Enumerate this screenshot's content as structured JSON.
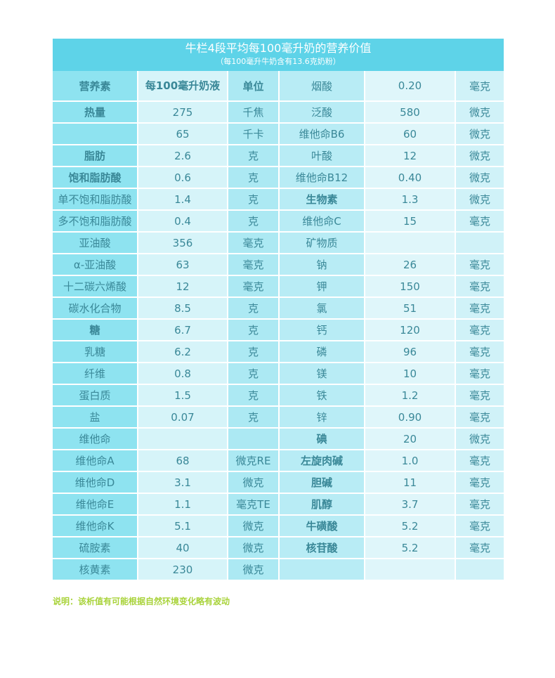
{
  "header": {
    "title": "牛栏4段平均每100毫升奶的营养价值",
    "subtitle": "（每100毫升牛奶含有13.6克奶粉）"
  },
  "table": {
    "head": {
      "name": "营养素",
      "amount": "每100毫升奶液",
      "unit": "单位",
      "name2": "烟酸",
      "amount2": "0.20",
      "unit2": "毫克"
    },
    "rows": [
      {
        "name": "热量",
        "val": "275",
        "unit": "千焦",
        "name2": "泛酸",
        "val2": "580",
        "unit2": "微克",
        "b1": true,
        "b2": false
      },
      {
        "name": "",
        "val": "65",
        "unit": "千卡",
        "name2": "维他命B6",
        "val2": "60",
        "unit2": "微克",
        "b1": false,
        "b2": false
      },
      {
        "name": "脂肪",
        "val": "2.6",
        "unit": "克",
        "name2": "叶酸",
        "val2": "12",
        "unit2": "微克",
        "b1": true,
        "b2": false
      },
      {
        "name": "饱和脂肪酸",
        "val": "0.6",
        "unit": "克",
        "name2": "维他命B12",
        "val2": "0.40",
        "unit2": "微克",
        "b1": true,
        "b2": false
      },
      {
        "name": "单不饱和脂肪酸",
        "val": "1.4",
        "unit": "克",
        "name2": "生物素",
        "val2": "1.3",
        "unit2": "微克",
        "b1": false,
        "b2": true
      },
      {
        "name": "多不饱和脂肪酸",
        "val": "0.4",
        "unit": "克",
        "name2": "维他命C",
        "val2": "15",
        "unit2": "毫克",
        "b1": false,
        "b2": false
      },
      {
        "name": "亚油酸",
        "val": "356",
        "unit": "毫克",
        "name2": "矿物质",
        "val2": "",
        "unit2": "",
        "b1": false,
        "b2": false
      },
      {
        "name": "α-亚油酸",
        "val": "63",
        "unit": "毫克",
        "name2": "钠",
        "val2": "26",
        "unit2": "毫克",
        "b1": false,
        "b2": false
      },
      {
        "name": "十二碳六烯酸",
        "val": "12",
        "unit": "毫克",
        "name2": "钾",
        "val2": "150",
        "unit2": "毫克",
        "b1": false,
        "b2": false
      },
      {
        "name": "碳水化合物",
        "val": "8.5",
        "unit": "克",
        "name2": "氯",
        "val2": "51",
        "unit2": "毫克",
        "b1": false,
        "b2": false
      },
      {
        "name": "糖",
        "val": "6.7",
        "unit": "克",
        "name2": "钙",
        "val2": "120",
        "unit2": "毫克",
        "b1": true,
        "b2": false
      },
      {
        "name": "乳糖",
        "val": "6.2",
        "unit": "克",
        "name2": "磷",
        "val2": "96",
        "unit2": "毫克",
        "b1": false,
        "b2": false
      },
      {
        "name": "纤维",
        "val": "0.8",
        "unit": "克",
        "name2": "镁",
        "val2": "10",
        "unit2": "毫克",
        "b1": false,
        "b2": false
      },
      {
        "name": "蛋白质",
        "val": "1.5",
        "unit": "克",
        "name2": "铁",
        "val2": "1.2",
        "unit2": "毫克",
        "b1": false,
        "b2": false
      },
      {
        "name": "盐",
        "val": "0.07",
        "unit": "克",
        "name2": "锌",
        "val2": "0.90",
        "unit2": "毫克",
        "b1": false,
        "b2": false
      },
      {
        "name": "维他命",
        "val": "",
        "unit": "",
        "name2": "碘",
        "val2": "20",
        "unit2": "微克",
        "b1": false,
        "b2": true
      },
      {
        "name": "维他命A",
        "val": "68",
        "unit": "微克RE",
        "name2": "左旋肉碱",
        "val2": "1.0",
        "unit2": "毫克",
        "b1": false,
        "b2": true
      },
      {
        "name": "维他命D",
        "val": "3.1",
        "unit": "微克",
        "name2": "胆碱",
        "val2": "11",
        "unit2": "毫克",
        "b1": false,
        "b2": true
      },
      {
        "name": "维他命E",
        "val": "1.1",
        "unit": "毫克TE",
        "name2": "肌醇",
        "val2": "3.7",
        "unit2": "毫克",
        "b1": false,
        "b2": true
      },
      {
        "name": "维他命K",
        "val": "5.1",
        "unit": "微克",
        "name2": "牛磺酸",
        "val2": "5.2",
        "unit2": "毫克",
        "b1": false,
        "b2": true
      },
      {
        "name": "硫胺素",
        "val": "40",
        "unit": "微克",
        "name2": "核苷酸",
        "val2": "5.2",
        "unit2": "毫克",
        "b1": false,
        "b2": true
      },
      {
        "name": "核黄素",
        "val": "230",
        "unit": "微克",
        "name2": "",
        "val2": "",
        "unit2": "",
        "b1": false,
        "b2": false
      }
    ]
  },
  "note": "说明：该析值有可能根据自然环境变化略有波动"
}
